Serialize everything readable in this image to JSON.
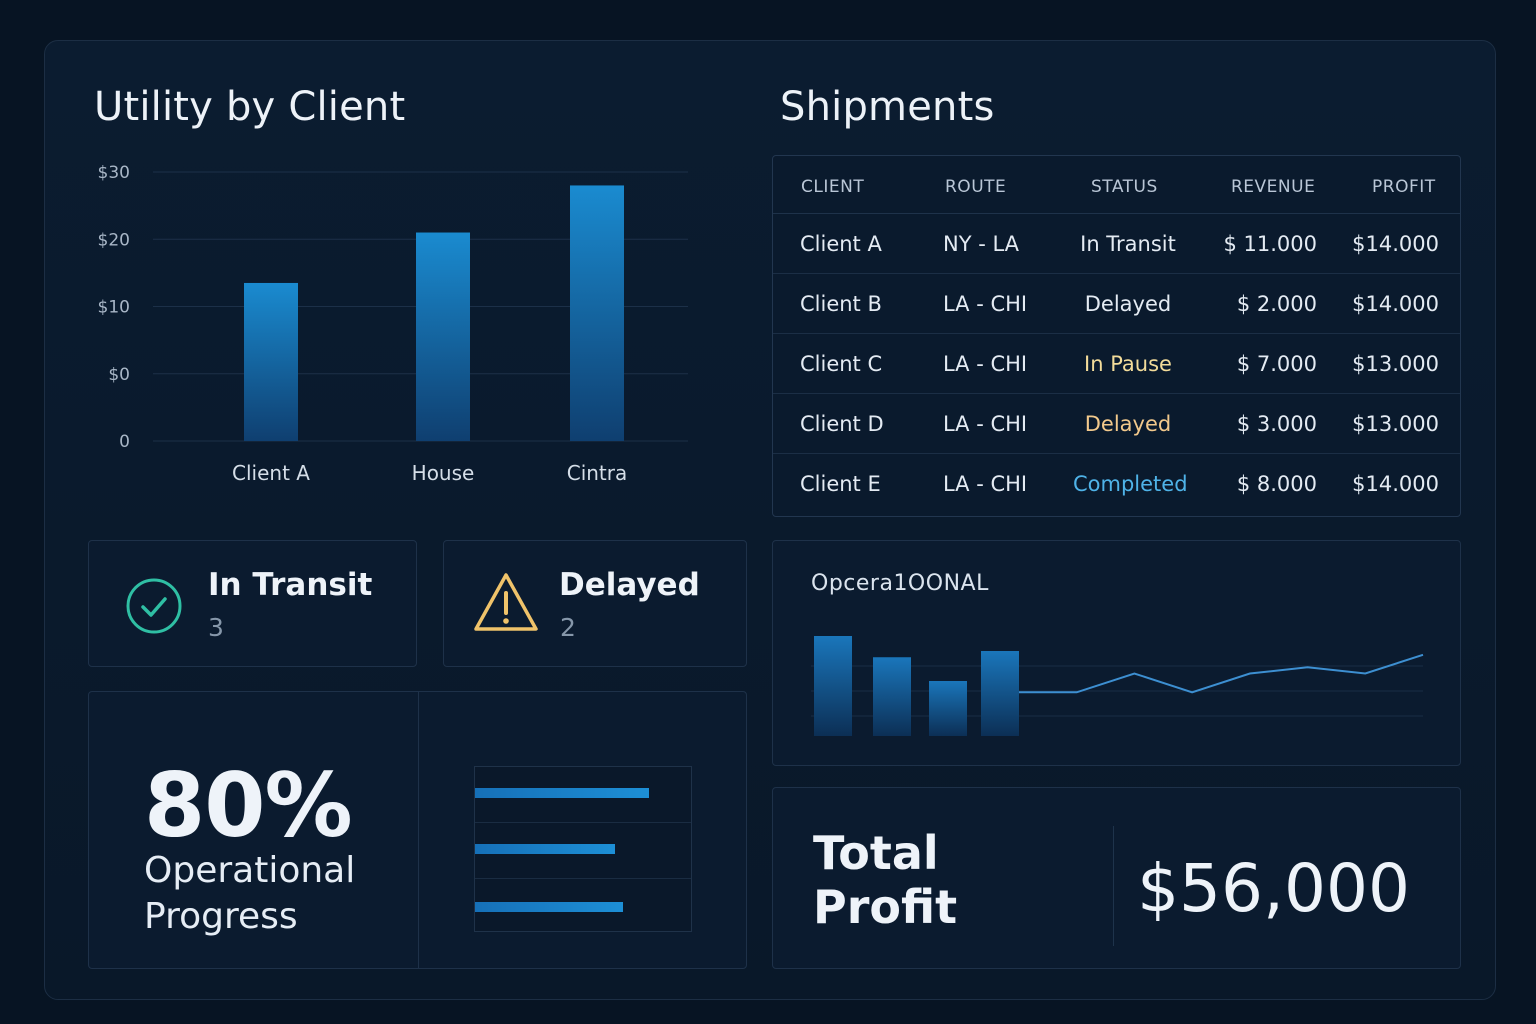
{
  "utility": {
    "title": "Utility by Client"
  },
  "shipments": {
    "title": "Shipments",
    "columns": [
      "CLIENT",
      "ROUTE",
      "STATUS",
      "REVENUE",
      "PROFIT"
    ],
    "rows": [
      {
        "client": "Client A",
        "route": "NY - LA",
        "status": "In Transit",
        "status_color": "#e4ebf3",
        "revenue": "$ 11.000",
        "profit": "$14.000"
      },
      {
        "client": "Client B",
        "route": "LA - CHI",
        "status": "Delayed",
        "status_color": "#e4ebf3",
        "revenue": "$ 2.000",
        "profit": "$14.000"
      },
      {
        "client": "Client C",
        "route": "LA - CHI",
        "status": "In Pause",
        "status_color": "#f3dc9a",
        "revenue": "$ 7.000",
        "profit": "$13.000"
      },
      {
        "client": "Client D",
        "route": "LA - CHI",
        "status": "Delayed",
        "status_color": "#f2c98c",
        "revenue": "$ 3.000",
        "profit": "$13.000"
      },
      {
        "client": "Client E",
        "route": "LA - CHI",
        "status": "Completed",
        "status_color": "#4fb3e8",
        "revenue": "$ 8.000",
        "profit": "$14.000"
      }
    ]
  },
  "in_transit": {
    "label": "In Transit",
    "count": "3",
    "icon": "check-circle-icon",
    "color": "#2fbfa4"
  },
  "delayed": {
    "label": "Delayed",
    "count": "2",
    "icon": "warning-triangle-icon",
    "color": "#f0c36a"
  },
  "progress": {
    "value": "80%",
    "label_line1": "Operational",
    "label_line2": "Progress",
    "bar_fractions": [
      0.8,
      0.64,
      0.68
    ]
  },
  "operational": {
    "label": "Opcera1OONAL"
  },
  "total_profit": {
    "label_line1": "Total",
    "label_line2": "Profit",
    "value": "$56,000"
  },
  "chart_data": [
    {
      "type": "bar",
      "title": "Utility by Client",
      "categories": [
        "Client A",
        "House",
        "Cintra"
      ],
      "values": [
        13.5,
        21,
        28
      ],
      "y_tick_labels": [
        "0",
        "$0",
        "$10",
        "$20",
        "$30"
      ],
      "ylim": [
        -10,
        30
      ],
      "grid": true,
      "color": "#1a7fc4"
    },
    {
      "type": "bar+line",
      "title": "Opcera1OONAL",
      "bars": [
        0.8,
        0.63,
        0.44,
        0.68
      ],
      "line": [
        0.35,
        0.35,
        0.5,
        0.35,
        0.5,
        0.55,
        0.5,
        0.65
      ],
      "color": "#1a7fc4"
    }
  ]
}
